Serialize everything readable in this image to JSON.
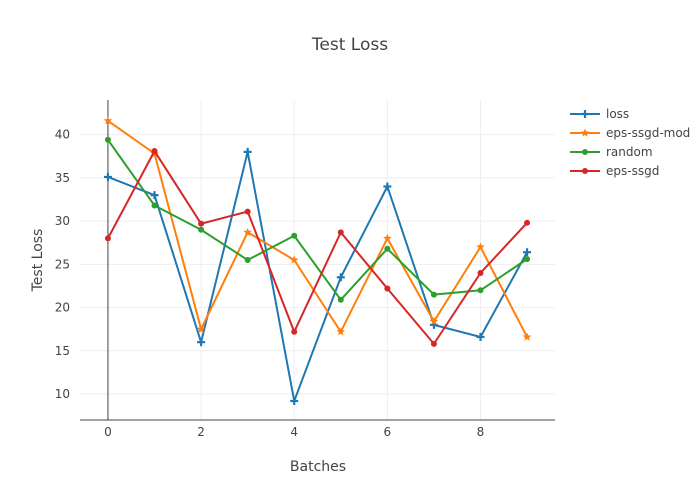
{
  "chart_data": {
    "type": "line",
    "title": "Test Loss",
    "xlabel": "Batches",
    "ylabel": "Test Loss",
    "x": [
      0,
      1,
      2,
      3,
      4,
      5,
      6,
      7,
      8,
      9
    ],
    "xlim": [
      -0.6,
      9.6
    ],
    "ylim": [
      7,
      44
    ],
    "xticks": [
      0,
      2,
      4,
      6,
      8
    ],
    "yticks": [
      10,
      15,
      20,
      25,
      30,
      35,
      40
    ],
    "grid": true,
    "legend_position": "top-right",
    "series": [
      {
        "name": "loss",
        "color": "#1f77b4",
        "marker": "cross",
        "values": [
          35.1,
          33.0,
          16.0,
          38.0,
          9.2,
          23.5,
          34.0,
          18.0,
          16.6,
          26.4
        ]
      },
      {
        "name": "eps-ssgd-mod",
        "color": "#ff7f0e",
        "marker": "star",
        "values": [
          41.6,
          37.8,
          17.5,
          28.7,
          25.5,
          17.2,
          28.0,
          18.4,
          27.0,
          16.6
        ]
      },
      {
        "name": "random",
        "color": "#2ca02c",
        "marker": "circle",
        "values": [
          39.4,
          31.8,
          29.0,
          25.5,
          28.3,
          20.9,
          26.8,
          21.5,
          22.0,
          25.6
        ]
      },
      {
        "name": "eps-ssgd",
        "color": "#d62728",
        "marker": "circle",
        "values": [
          28.0,
          38.1,
          29.7,
          31.1,
          17.2,
          28.7,
          22.2,
          15.8,
          24.0,
          29.8
        ]
      }
    ]
  }
}
